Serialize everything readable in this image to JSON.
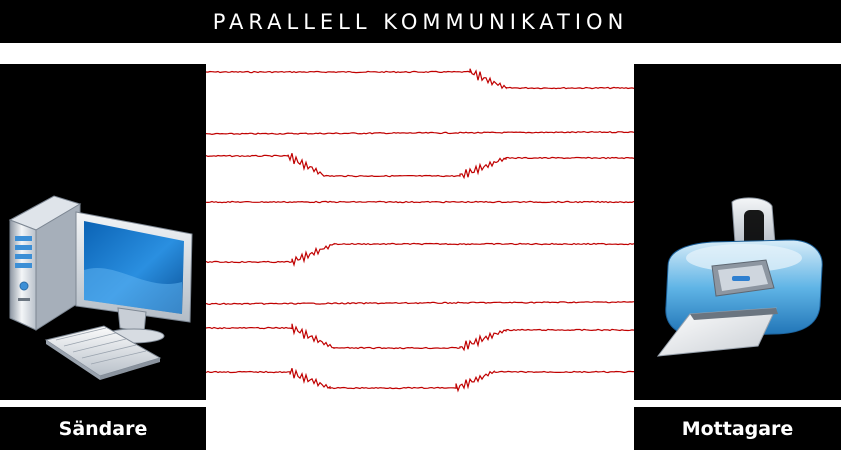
{
  "title": "PARALLELL KOMMUNIKATION",
  "sender": {
    "label": "Sändare",
    "icon": "desktop-computer-icon"
  },
  "receiver": {
    "label": "Mottagare",
    "icon": "printer-icon"
  },
  "colors": {
    "background": "#000000",
    "text": "#ffffff",
    "signal": "#c00000"
  }
}
